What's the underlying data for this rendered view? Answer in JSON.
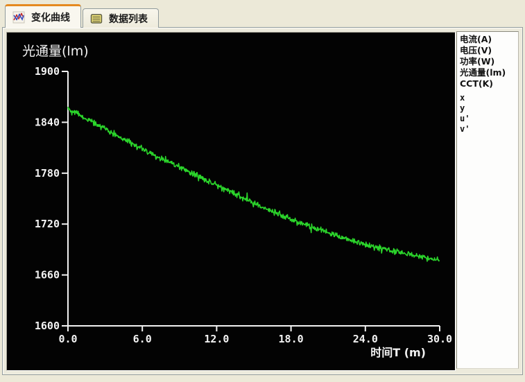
{
  "tabs": [
    {
      "label": "变化曲线",
      "icon": "curve-chart-icon",
      "active": true
    },
    {
      "label": "数据列表",
      "icon": "data-list-icon",
      "active": false
    }
  ],
  "legend": {
    "items": [
      "电流(A)",
      "电压(V)",
      "功率(W)",
      "光通量(lm)",
      "CCT(K)",
      "x",
      "y",
      "u'",
      "v'"
    ]
  },
  "chart_data": {
    "type": "line",
    "title": "光通量(lm)",
    "xlabel": "时间T (m)",
    "ylabel": "光通量(lm)",
    "x_ticks": [
      "0.0",
      "6.0",
      "12.0",
      "18.0",
      "24.0",
      "30.0"
    ],
    "y_ticks": [
      "1900",
      "1840",
      "1780",
      "1720",
      "1660",
      "1600"
    ],
    "xlim": [
      0,
      30
    ],
    "ylim": [
      1600,
      1900
    ],
    "grid": false,
    "legend_position": "right-panel",
    "background_color": "#030303",
    "axis_color": "#f2f2f2",
    "line_color": "#2bd52b",
    "noise_amplitude_lm": 4,
    "series": [
      {
        "name": "光通量(lm)",
        "x_minutes": [
          0,
          1,
          2,
          3,
          4,
          5,
          6,
          7,
          8,
          9,
          10,
          11,
          12,
          13,
          14,
          15,
          16,
          17,
          18,
          19,
          20,
          21,
          22,
          23,
          24,
          25,
          26,
          27,
          28,
          29,
          30
        ],
        "values": [
          1857,
          1848,
          1840,
          1832,
          1824,
          1816,
          1809,
          1801,
          1794,
          1787,
          1780,
          1773,
          1766,
          1759,
          1752,
          1745,
          1738,
          1732,
          1726,
          1720,
          1715,
          1710,
          1705,
          1700,
          1696,
          1692,
          1689,
          1686,
          1683,
          1680,
          1678
        ]
      }
    ]
  }
}
